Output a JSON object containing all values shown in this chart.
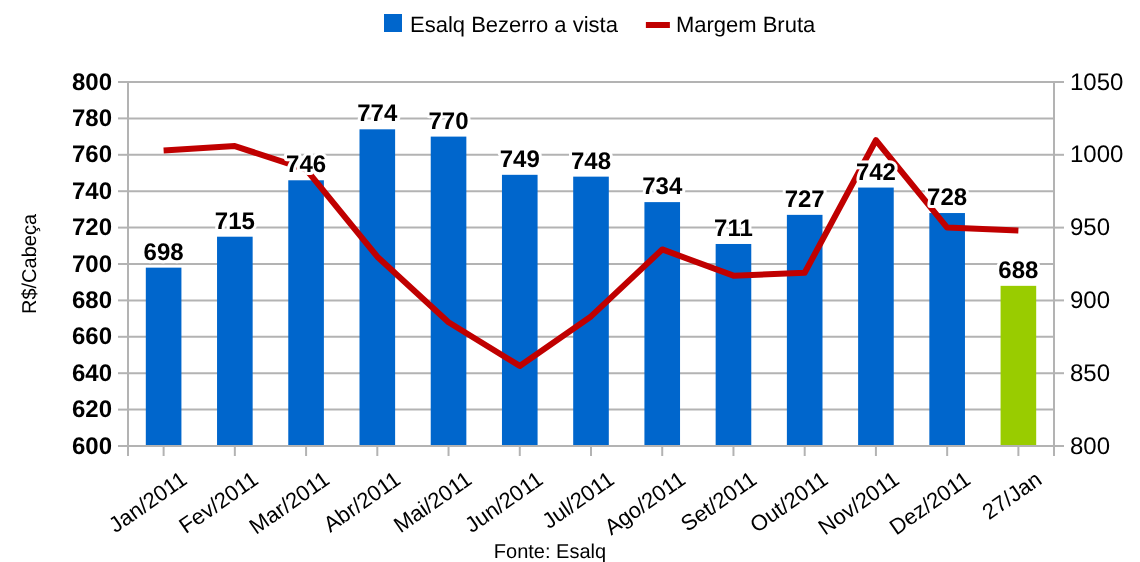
{
  "chart_data": {
    "type": "bar",
    "ylabel": "R$/Cabeça",
    "categories": [
      "Jan/2011",
      "Fev/2011",
      "Mar/2011",
      "Abr/2011",
      "Mai/2011",
      "Jun/2011",
      "Jul/2011",
      "Ago/2011",
      "Set/2011",
      "Out/2011",
      "Nov/2011",
      "Dez/2011",
      "27/Jan"
    ],
    "series": [
      {
        "name": "Esalq Bezerro a vista",
        "color": "#0066cc",
        "colors": [
          "#0066cc",
          "#0066cc",
          "#0066cc",
          "#0066cc",
          "#0066cc",
          "#0066cc",
          "#0066cc",
          "#0066cc",
          "#0066cc",
          "#0066cc",
          "#0066cc",
          "#0066cc",
          "#99cc00"
        ],
        "values": [
          698,
          715,
          746,
          774,
          770,
          749,
          748,
          734,
          711,
          727,
          742,
          728,
          688
        ],
        "value_labels": [
          "698",
          "715",
          "746",
          "774",
          "770",
          "749",
          "748",
          "734",
          "711",
          "727",
          "742",
          "728",
          "688"
        ]
      },
      {
        "name": "Margem Bruta",
        "type": "line",
        "axis": "y2",
        "color": "#c00000",
        "values": [
          1003,
          1006,
          990,
          930,
          885,
          855,
          889,
          935,
          917,
          919,
          1010,
          950,
          948
        ]
      }
    ],
    "ylim": [
      600,
      800
    ],
    "yticks": [
      600,
      620,
      640,
      660,
      680,
      700,
      720,
      740,
      760,
      780,
      800
    ],
    "y2lim": [
      800,
      1050
    ],
    "y2ticks": [
      800,
      850,
      900,
      950,
      1000,
      1050
    ],
    "grid": "y",
    "legend": "top",
    "annotations": [
      "Fonte: Esalq"
    ]
  }
}
